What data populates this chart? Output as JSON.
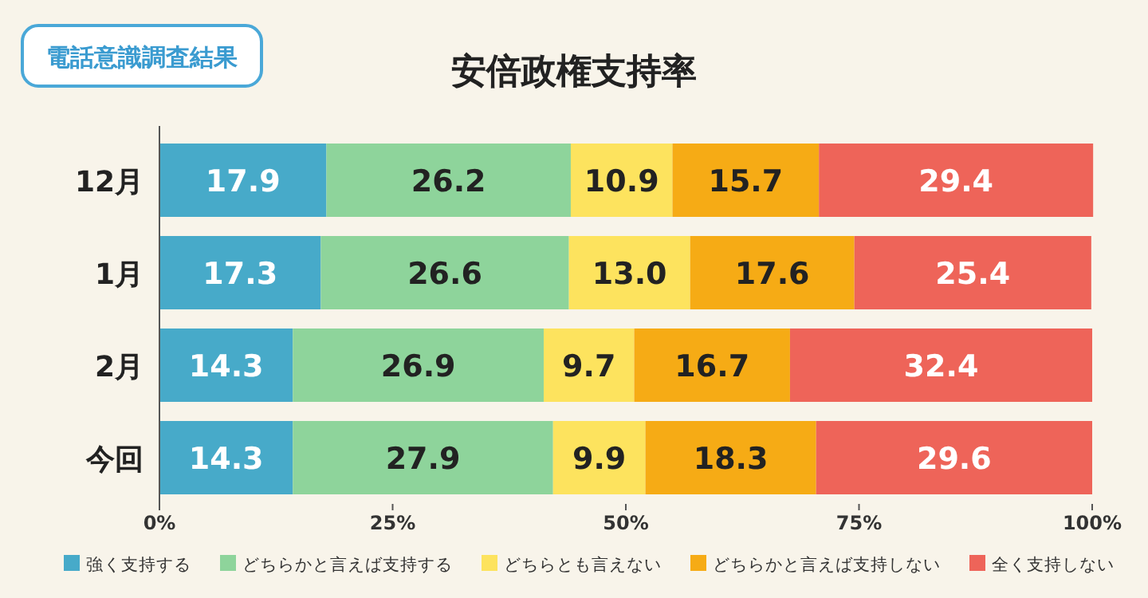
{
  "chart_data": {
    "type": "bar",
    "orientation": "horizontal",
    "stacked": true,
    "title": "安倍政権支持率",
    "annotations": [
      "電話意識調査結果"
    ],
    "categories": [
      "12月",
      "1月",
      "2月",
      "今回"
    ],
    "series": [
      {
        "name": "強く支持する",
        "color": "#47aac9",
        "values": [
          17.9,
          17.3,
          14.3,
          14.3
        ]
      },
      {
        "name": "どちらかと言えば支持する",
        "color": "#8ed49b",
        "values": [
          26.2,
          26.6,
          26.9,
          27.9
        ]
      },
      {
        "name": "どちらとも言えない",
        "color": "#fde35e",
        "values": [
          10.9,
          13.0,
          9.7,
          9.9
        ],
        "value_labels": [
          "10.9",
          "13.0",
          "9.7",
          "9.9"
        ]
      },
      {
        "name": "どちらかと言えば支持しない",
        "color": "#f6ab15",
        "values": [
          15.7,
          17.6,
          16.7,
          18.3
        ]
      },
      {
        "name": "全く支持しない",
        "color": "#ee6459",
        "values": [
          29.4,
          25.4,
          32.4,
          29.6
        ]
      }
    ],
    "xlim": [
      0,
      100
    ],
    "xticks": [
      {
        "value": 0,
        "label": "0%"
      },
      {
        "value": 25,
        "label": "25%"
      },
      {
        "value": 50,
        "label": "50%"
      },
      {
        "value": 75,
        "label": "75%"
      },
      {
        "value": 100,
        "label": "100%"
      }
    ],
    "data_labels": true,
    "legend": "bottom",
    "grid": false
  }
}
